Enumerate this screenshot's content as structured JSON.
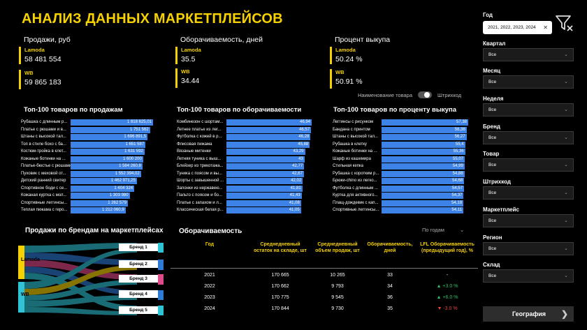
{
  "title": "АНАЛИЗ ДАННЫХ МАРКЕТПЛЕЙСОВ",
  "kpis": {
    "sales": {
      "title": "Продажи, руб",
      "lamoda_label": "Lamoda",
      "lamoda_value": "58 481 554",
      "wb_label": "WB",
      "wb_value": "59 865 183"
    },
    "turnover": {
      "title": "Оборачиваемость, дней",
      "lamoda_label": "Lamoda",
      "lamoda_value": "35.5",
      "wb_label": "WB",
      "wb_value": "34.44"
    },
    "buyout": {
      "title": "Процент выкупа",
      "lamoda_label": "Lamoda",
      "lamoda_value": "50.24 %",
      "wb_label": "WB",
      "wb_value": "50.91 %"
    }
  },
  "toggle": {
    "left_label": "Наименование товара",
    "right_label": "Штрихкод"
  },
  "top_sales": {
    "title": "Топ-100 товаров по продажам",
    "items": [
      {
        "name": "Рубашка с длинным р...",
        "value": 1818625.01,
        "label": "1 818 625,01"
      },
      {
        "name": "Платье с рюшами и в...",
        "value": 1751562,
        "label": "1 751 562"
      },
      {
        "name": "Штаны с высокой тал...",
        "value": 1696891.5,
        "label": "1 696 891,5"
      },
      {
        "name": "Топ в стиле бохо с ба...",
        "value": 1651587,
        "label": "1 651 587"
      },
      {
        "name": "Костюм-тройка в клет...",
        "value": 1631592,
        "label": "1 631 592"
      },
      {
        "name": "Кожаные ботинки на ...",
        "value": 1600200,
        "label": "1 600 200"
      },
      {
        "name": "Платье-бюстье с рюшами",
        "value": 1584260.8,
        "label": "1 584 260,8"
      },
      {
        "name": "Пуховик с меховой от...",
        "value": 1552394.02,
        "label": "1 552 394,02"
      },
      {
        "name": "Детский ранний свитер",
        "value": 1462971.25,
        "label": "1 462 971,25"
      },
      {
        "name": "Спортивное боди с се...",
        "value": 1404324,
        "label": "1 404 324"
      },
      {
        "name": "Кожаная куртка с мол...",
        "value": 1303980,
        "label": "1 303 980"
      },
      {
        "name": "Спортивные леггинсы...",
        "value": 1262579,
        "label": "1 262 579"
      },
      {
        "name": "Теплая пижама с геро...",
        "value": 1212060.9,
        "label": "1 212 060,9"
      }
    ]
  },
  "top_turnover": {
    "title": "Топ-100 товаров по оборачиваемости",
    "items": [
      {
        "name": "Комбинезон с шортам...",
        "value": 46.94,
        "label": "46,94"
      },
      {
        "name": "Летнее платье из лег...",
        "value": 46.57,
        "label": "46,57"
      },
      {
        "name": "Футболка с кожей в р...",
        "value": 46.28,
        "label": "46,28"
      },
      {
        "name": "Флисовая пижама",
        "value": 45.88,
        "label": "45,88"
      },
      {
        "name": "Вязаные митенки",
        "value": 43.29,
        "label": "43,29"
      },
      {
        "name": "Летняя туника с выш...",
        "value": 43,
        "label": "43"
      },
      {
        "name": "Блейзер из трикотажа...",
        "value": 42.77,
        "label": "42,77"
      },
      {
        "name": "Туника с поясом и вы...",
        "value": 42.67,
        "label": "42,67"
      },
      {
        "name": "Шорты с завышенной ...",
        "value": 42.02,
        "label": "42,02"
      },
      {
        "name": "Запонки из нержавею...",
        "value": 41.81,
        "label": "41,81"
      },
      {
        "name": "Пальто с поясом и бо...",
        "value": 41.43,
        "label": "41,43"
      },
      {
        "name": "Платье с запахом и л...",
        "value": 41.08,
        "label": "41,08"
      },
      {
        "name": "Классическая белая р...",
        "value": 41.05,
        "label": "41,05"
      }
    ]
  },
  "top_buyout": {
    "title": "Топ-100 товаров по проценту выкупа",
    "items": [
      {
        "name": "Леггинсы с рисунком",
        "value": 57.38,
        "label": "57,38"
      },
      {
        "name": "Бандана с принтом",
        "value": 56.36,
        "label": "56,36"
      },
      {
        "name": "Штаны с высокой тал...",
        "value": 56.27,
        "label": "56,27"
      },
      {
        "name": "Рубашка в клетку",
        "value": 55.4,
        "label": "55,4"
      },
      {
        "name": "Кожаные ботинки на ...",
        "value": 55.36,
        "label": "55,36"
      },
      {
        "name": "Шарф из кашемира",
        "value": 55.07,
        "label": "55,07"
      },
      {
        "name": "Стильная кепка",
        "value": 54.99,
        "label": "54,99"
      },
      {
        "name": "Рубашка с коротким р...",
        "value": 54.88,
        "label": "54,88"
      },
      {
        "name": "Брюки-chino из легко...",
        "value": 54.68,
        "label": "54,68"
      },
      {
        "name": "Футболка с длинным ...",
        "value": 54.57,
        "label": "54,57"
      },
      {
        "name": "Куртка для активного...",
        "value": 54.37,
        "label": "54,37"
      },
      {
        "name": "Плащ-дождевик с кап...",
        "value": 54.18,
        "label": "54,18"
      },
      {
        "name": "Спортивные леггинсы...",
        "value": 54.11,
        "label": "54,11"
      }
    ]
  },
  "sankey": {
    "title": "Продажи по брендам на маркетплейсах",
    "sources": [
      "Lamoda",
      "WB"
    ],
    "brands": [
      "Бренд 1",
      "Бренд 2",
      "Бренд 3",
      "Бренд 4",
      "Бренд 5"
    ],
    "colors": {
      "lamoda": "#f5d100",
      "wb": "#2ec4d6",
      "brand1": "#2ec4d6",
      "brand2": "#2e7bd6",
      "brand3": "#e04a8a",
      "brand4": "#2e7bd6",
      "brand5": "#2ec4d6"
    }
  },
  "turnover_table": {
    "title": "Оборачиваемость",
    "period_label": "По годам",
    "headers": [
      "Год",
      "Среднедневный остаток на складе, шт",
      "Среднедневный объем продаж, шт",
      "Оборачиваемость, дней",
      "LFL Оборачиваемость (предыдущий год), %"
    ],
    "rows": [
      {
        "year": "2021",
        "stock": "170 665",
        "sales": "10 265",
        "turnover": "33",
        "lfl": "-",
        "trend": "none"
      },
      {
        "year": "2022",
        "stock": "170 662",
        "sales": "9 793",
        "turnover": "34",
        "lfl": "▲ +3.0 %",
        "trend": "up"
      },
      {
        "year": "2023",
        "stock": "170 775",
        "sales": "9 545",
        "turnover": "36",
        "lfl": "▲ +6.0 %",
        "trend": "up"
      },
      {
        "year": "2024",
        "stock": "170 844",
        "sales": "9 730",
        "turnover": "35",
        "lfl": "▼ -3.0 %",
        "trend": "down"
      }
    ]
  },
  "filters": {
    "year_label": "Год",
    "year_value": "2021, 2022, 2023, 2024",
    "items": [
      {
        "label": "Квартал",
        "value": "Все"
      },
      {
        "label": "Месяц",
        "value": "Все"
      },
      {
        "label": "Неделя",
        "value": "Все"
      },
      {
        "label": "Бренд",
        "value": "Все"
      },
      {
        "label": "Товар",
        "value": "Все"
      },
      {
        "label": "Штрихкод",
        "value": "Все"
      },
      {
        "label": "Маркетплейс",
        "value": "Все"
      },
      {
        "label": "Регион",
        "value": "Все"
      },
      {
        "label": "Склад",
        "value": "Все"
      }
    ],
    "geo_button": "География"
  },
  "colors": {
    "accent": "#f5d100",
    "bar": "#3d82e6",
    "up": "#2ec26a",
    "down": "#e54444"
  }
}
